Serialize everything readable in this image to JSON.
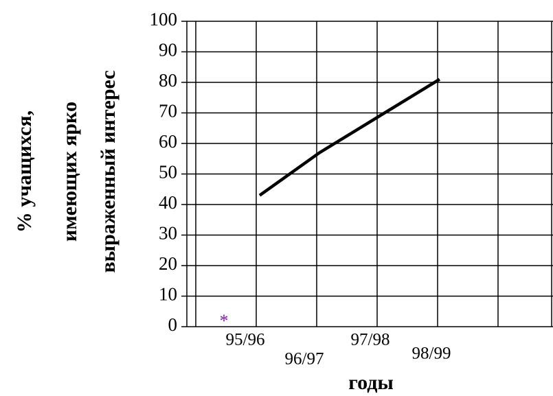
{
  "chart_data": {
    "type": "line",
    "xlabel": "годы",
    "ylabel": [
      "% учащихся,",
      "имеющих ярко",
      "выраженный интерес"
    ],
    "categories": [
      "95/96",
      "96/97",
      "97/98",
      "98/99"
    ],
    "series": [
      {
        "color": "#000000",
        "values": [
          43,
          57,
          69,
          81
        ]
      }
    ],
    "ylim": [
      0,
      100
    ],
    "yticks": [
      0,
      10,
      20,
      30,
      40,
      50,
      60,
      70,
      80,
      90,
      100
    ],
    "grid": true
  }
}
